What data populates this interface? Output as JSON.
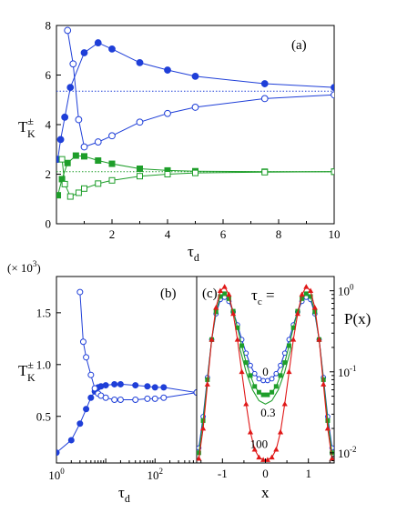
{
  "chart_data": [
    {
      "type": "line",
      "panel_label": "(a)",
      "xlabel": "τ",
      "xlabel_sub": "d",
      "ylabel": "T",
      "ylabel_sub": "K",
      "ylabel_sup": "±",
      "xlim": [
        0,
        10
      ],
      "ylim": [
        0,
        8
      ],
      "xticks": [
        2,
        4,
        6,
        8,
        10
      ],
      "yticks": [
        0,
        2,
        4,
        6,
        8
      ],
      "reference_lines": [
        {
          "y": 5.35,
          "color": "#1f3fd8"
        },
        {
          "y": 2.1,
          "color": "#1e9e2a"
        }
      ],
      "series": [
        {
          "marker": "filled-circle",
          "color": "#1f3fd8",
          "x": [
            0.05,
            0.15,
            0.3,
            0.5,
            1.0,
            1.5,
            2.0,
            3.0,
            4.0,
            5.0,
            7.5,
            10.0
          ],
          "y": [
            2.6,
            3.4,
            4.3,
            5.5,
            6.9,
            7.3,
            7.05,
            6.5,
            6.2,
            5.95,
            5.65,
            5.5
          ]
        },
        {
          "marker": "open-circle",
          "color": "#1f3fd8",
          "x": [
            0.4,
            0.6,
            0.8,
            1.0,
            1.5,
            2.0,
            3.0,
            4.0,
            5.0,
            7.5,
            10.0
          ],
          "y": [
            7.8,
            6.45,
            4.2,
            3.1,
            3.3,
            3.55,
            4.1,
            4.45,
            4.7,
            5.05,
            5.2
          ]
        },
        {
          "marker": "filled-square",
          "color": "#1e9e2a",
          "x": [
            0.05,
            0.2,
            0.4,
            0.7,
            1.0,
            1.5,
            2.0,
            3.0,
            4.0,
            5.0,
            7.5,
            10.0
          ],
          "y": [
            1.15,
            1.8,
            2.45,
            2.75,
            2.72,
            2.55,
            2.42,
            2.22,
            2.15,
            2.12,
            2.1,
            2.1
          ]
        },
        {
          "marker": "open-square",
          "color": "#1e9e2a",
          "x": [
            0.2,
            0.3,
            0.5,
            0.8,
            1.0,
            1.5,
            2.0,
            3.0,
            4.0,
            5.0,
            7.5,
            10.0
          ],
          "y": [
            2.6,
            1.6,
            1.1,
            1.25,
            1.42,
            1.62,
            1.75,
            1.92,
            2.0,
            2.05,
            2.08,
            2.1
          ]
        }
      ]
    },
    {
      "type": "line",
      "panel_label": "(b)",
      "xscale": "log",
      "xlabel": "τ",
      "xlabel_sub": "d",
      "ylabel": "T",
      "ylabel_sub": "K",
      "ylabel_sup": "±",
      "multiplier": "(× 10",
      "multiplier_exp": "3",
      "multiplier_close": ")",
      "xlim": [
        1,
        700
      ],
      "ylim": [
        0.05,
        1.85
      ],
      "xtick_base": "10",
      "xticks": [
        {
          "value": 1,
          "exp": "0"
        },
        {
          "value": 100,
          "exp": "2"
        }
      ],
      "yticks": [
        "0.5",
        "1.0",
        "1.5"
      ],
      "ytick_values": [
        0.5,
        1.0,
        1.5
      ],
      "series": [
        {
          "marker": "filled-circle",
          "color": "#1f3fd8",
          "x": [
            1.0,
            2.0,
            3.0,
            4.0,
            5.0,
            6.0,
            7.0,
            8.0,
            10.0,
            15.0,
            20.0,
            40.0,
            70.0,
            100.0,
            150.0,
            700.0
          ],
          "y": [
            0.15,
            0.27,
            0.43,
            0.57,
            0.68,
            0.74,
            0.78,
            0.79,
            0.8,
            0.81,
            0.81,
            0.8,
            0.79,
            0.78,
            0.78,
            0.73
          ]
        },
        {
          "marker": "open-circle",
          "color": "#1f3fd8",
          "x": [
            3.0,
            3.5,
            4.0,
            5.0,
            6.0,
            7.0,
            8.0,
            10.0,
            15.0,
            20.0,
            40.0,
            70.0,
            100.0,
            150.0,
            700.0
          ],
          "y": [
            1.7,
            1.22,
            1.07,
            0.9,
            0.77,
            0.72,
            0.7,
            0.68,
            0.66,
            0.66,
            0.66,
            0.67,
            0.67,
            0.68,
            0.73
          ]
        }
      ]
    },
    {
      "type": "line",
      "panel_label": "(c)",
      "yscale": "log",
      "xlabel": "x",
      "ylabel": "P(x)",
      "ylabel_side": "right",
      "legend_title": "τ",
      "legend_title_sub": "c",
      "legend_title_eq": " =",
      "xlim": [
        -1.6,
        1.6
      ],
      "ylim": [
        0.0075,
        1.5
      ],
      "xticks": [
        "-1",
        "0",
        "1"
      ],
      "xtick_values": [
        -1,
        0,
        1
      ],
      "ytick_base": "10",
      "yticks": [
        {
          "value": 1,
          "exp": "0"
        },
        {
          "value": 0.1,
          "exp": "-1"
        },
        {
          "value": 0.01,
          "exp": "-2"
        }
      ],
      "series": [
        {
          "name": "0",
          "marker": "open-circle",
          "color": "#1f3fd8",
          "label_pos": [
            0.0,
            0.09
          ],
          "x": [
            -1.55,
            -1.45,
            -1.35,
            -1.25,
            -1.15,
            -1.05,
            -0.95,
            -0.85,
            -0.75,
            -0.65,
            -0.55,
            -0.45,
            -0.35,
            -0.25,
            -0.15,
            -0.05,
            0.05,
            0.15,
            0.25,
            0.35,
            0.45,
            0.55,
            0.65,
            0.75,
            0.85,
            0.95,
            1.05,
            1.15,
            1.25,
            1.35,
            1.45,
            1.55
          ],
          "y": [
            0.0115,
            0.028,
            0.085,
            0.25,
            0.52,
            0.78,
            0.83,
            0.74,
            0.55,
            0.38,
            0.25,
            0.17,
            0.12,
            0.095,
            0.082,
            0.078,
            0.078,
            0.082,
            0.095,
            0.12,
            0.17,
            0.25,
            0.38,
            0.55,
            0.74,
            0.83,
            0.78,
            0.52,
            0.25,
            0.085,
            0.028,
            0.0115
          ]
        },
        {
          "name": "0.3",
          "marker": "filled-square",
          "color": "#1e9e2a",
          "label_pos": [
            0.06,
            0.028
          ],
          "x": [
            -1.55,
            -1.45,
            -1.35,
            -1.25,
            -1.15,
            -1.05,
            -0.95,
            -0.85,
            -0.75,
            -0.65,
            -0.55,
            -0.45,
            -0.35,
            -0.25,
            -0.15,
            -0.05,
            0.05,
            0.15,
            0.25,
            0.35,
            0.45,
            0.55,
            0.65,
            0.75,
            0.85,
            0.95,
            1.05,
            1.15,
            1.25,
            1.35,
            1.45,
            1.55
          ],
          "y": [
            0.01,
            0.025,
            0.08,
            0.25,
            0.55,
            0.85,
            0.92,
            0.8,
            0.56,
            0.35,
            0.21,
            0.13,
            0.09,
            0.066,
            0.056,
            0.052,
            0.052,
            0.056,
            0.066,
            0.09,
            0.13,
            0.21,
            0.35,
            0.56,
            0.8,
            0.92,
            0.85,
            0.55,
            0.25,
            0.08,
            0.025,
            0.01
          ]
        },
        {
          "name": "100",
          "marker": "filled-triangle",
          "color": "#e01818",
          "label_pos": [
            -0.15,
            0.0115
          ],
          "x": [
            -1.55,
            -1.45,
            -1.35,
            -1.25,
            -1.15,
            -1.05,
            -0.95,
            -0.85,
            -0.75,
            -0.65,
            -0.55,
            -0.45,
            -0.35,
            -0.25,
            -0.15,
            -0.05,
            0.05,
            0.15,
            0.25,
            0.35,
            0.45,
            0.55,
            0.65,
            0.75,
            0.85,
            0.95,
            1.05,
            1.15,
            1.25,
            1.35,
            1.45,
            1.55
          ],
          "y": [
            0.0085,
            0.02,
            0.07,
            0.25,
            0.62,
            1.0,
            1.12,
            0.9,
            0.52,
            0.25,
            0.1,
            0.04,
            0.018,
            0.011,
            0.0088,
            0.0082,
            0.0082,
            0.0088,
            0.011,
            0.018,
            0.04,
            0.1,
            0.25,
            0.52,
            0.9,
            1.12,
            1.0,
            0.62,
            0.25,
            0.07,
            0.02,
            0.0085
          ]
        },
        {
          "name": "",
          "marker": "none",
          "color": "#1e9e2a",
          "label_pos": null,
          "x": [
            -0.6,
            -0.45,
            -0.3,
            -0.15,
            0.0,
            0.15,
            0.3,
            0.45,
            0.6
          ],
          "y": [
            0.2,
            0.1,
            0.06,
            0.044,
            0.04,
            0.044,
            0.06,
            0.1,
            0.2
          ]
        }
      ]
    }
  ]
}
